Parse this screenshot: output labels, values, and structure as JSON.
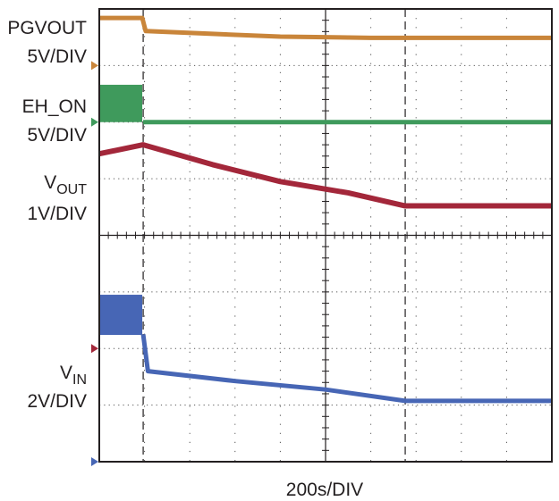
{
  "chart_data": {
    "type": "line",
    "title": "",
    "xlabel": "200s/DIV",
    "ylabel": "",
    "x_units": "s",
    "x_per_div": 200,
    "xlim": [
      0,
      2000
    ],
    "divisions": {
      "horizontal": 10,
      "vertical": 8
    },
    "grid": true,
    "cursors_x": [
      194,
      1352
    ],
    "series": [
      {
        "name": "PGVOUT",
        "label_main": "PGVOUT",
        "label_sub": "",
        "scale_label": "5V/DIV",
        "volts_per_div": 5,
        "ref_div": 3,
        "color": "#c9853a",
        "points": [
          [
            0,
            4.2
          ],
          [
            190,
            4.2
          ],
          [
            205,
            3.05
          ],
          [
            500,
            2.8
          ],
          [
            800,
            2.55
          ],
          [
            1200,
            2.45
          ],
          [
            2000,
            2.45
          ]
        ],
        "bands": []
      },
      {
        "name": "EH_ON",
        "label_main": "EH_ON",
        "label_sub": "",
        "scale_label": "5V/DIV",
        "volts_per_div": 5,
        "ref_div": 2,
        "color": "#3f9a5c",
        "points": [
          [
            194,
            0
          ],
          [
            2000,
            0
          ]
        ],
        "bands": [
          [
            0,
            190,
            0,
            3.3
          ]
        ]
      },
      {
        "name": "VOUT",
        "label_main": "V",
        "label_sub": "OUT",
        "scale_label": "1V/DIV",
        "volts_per_div": 1,
        "ref_div": -2,
        "color": "#a3273a",
        "points": [
          [
            0,
            3.44
          ],
          [
            194,
            3.6
          ],
          [
            500,
            3.25
          ],
          [
            800,
            2.95
          ],
          [
            1100,
            2.75
          ],
          [
            1352,
            2.52
          ],
          [
            2000,
            2.52
          ]
        ],
        "bands": []
      },
      {
        "name": "VIN",
        "label_main": "V",
        "label_sub": "IN",
        "scale_label": "2V/DIV",
        "volts_per_div": 2,
        "ref_div": -4,
        "color": "#4766b5",
        "points": [
          [
            194,
            4.5
          ],
          [
            215,
            3.2
          ],
          [
            600,
            2.85
          ],
          [
            1000,
            2.55
          ],
          [
            1352,
            2.15
          ],
          [
            2000,
            2.15
          ]
        ],
        "bands": [
          [
            0,
            190,
            4.48,
            5.9
          ]
        ]
      }
    ]
  }
}
